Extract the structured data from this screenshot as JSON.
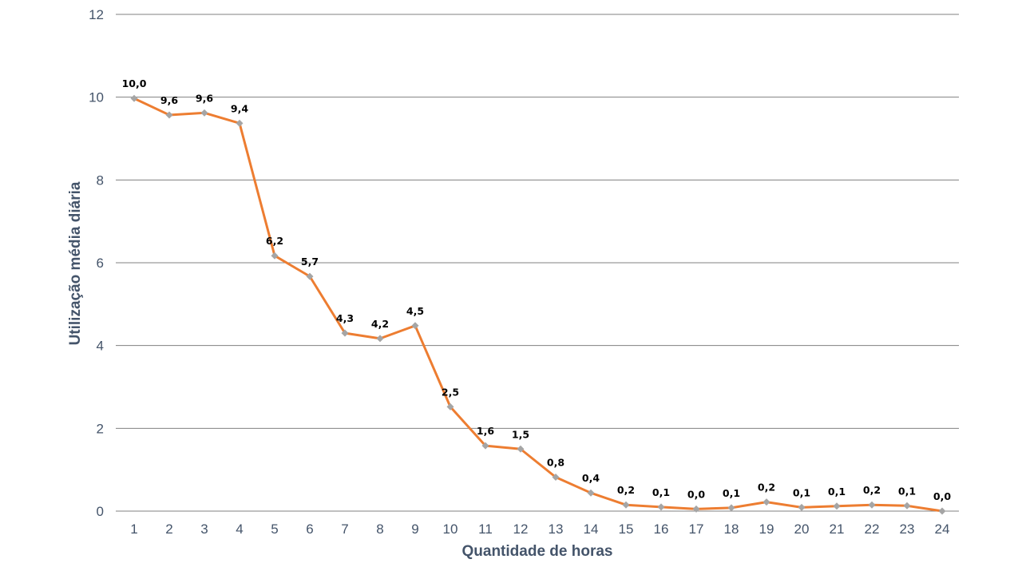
{
  "chart_data": {
    "type": "line",
    "title": "",
    "xlabel": "Quantidade de horas",
    "ylabel": "Utilização média diária",
    "x": [
      1,
      2,
      3,
      4,
      5,
      6,
      7,
      8,
      9,
      10,
      11,
      12,
      13,
      14,
      15,
      16,
      17,
      18,
      19,
      20,
      21,
      22,
      23,
      24
    ],
    "x_tick_labels": [
      "1",
      "2",
      "3",
      "4",
      "5",
      "6",
      "7",
      "8",
      "9",
      "10",
      "11",
      "12",
      "13",
      "14",
      "15",
      "16",
      "17",
      "18",
      "19",
      "20",
      "21",
      "22",
      "23",
      "24"
    ],
    "y_ticks": [
      0,
      2,
      4,
      6,
      8,
      10,
      12
    ],
    "y_tick_labels": [
      "0",
      "2",
      "4",
      "6",
      "8",
      "10",
      "12"
    ],
    "ylim": [
      0,
      12
    ],
    "grid": true,
    "legend": "none",
    "series": [
      {
        "values": [
          9.97,
          9.57,
          9.62,
          9.37,
          6.17,
          5.67,
          4.3,
          4.17,
          4.48,
          2.52,
          1.58,
          1.5,
          0.82,
          0.44,
          0.15,
          0.1,
          0.05,
          0.08,
          0.22,
          0.09,
          0.12,
          0.15,
          0.13,
          0.0
        ],
        "data_labels": [
          "10,0",
          "9,6",
          "9,6",
          "9,4",
          "6,2",
          "5,7",
          "4,3",
          "4,2",
          "4,5",
          "2,5",
          "1,6",
          "1,5",
          "0,8",
          "0,4",
          "0,2",
          "0,1",
          "0,0",
          "0,1",
          "0,2",
          "0,1",
          "0,1",
          "0,2",
          "0,1",
          "0,0"
        ],
        "line_color": "#ed7d31",
        "marker_color": "#a5a5a5"
      }
    ],
    "colors": {
      "grid": "#808080",
      "axis_text": "#44546a"
    }
  }
}
